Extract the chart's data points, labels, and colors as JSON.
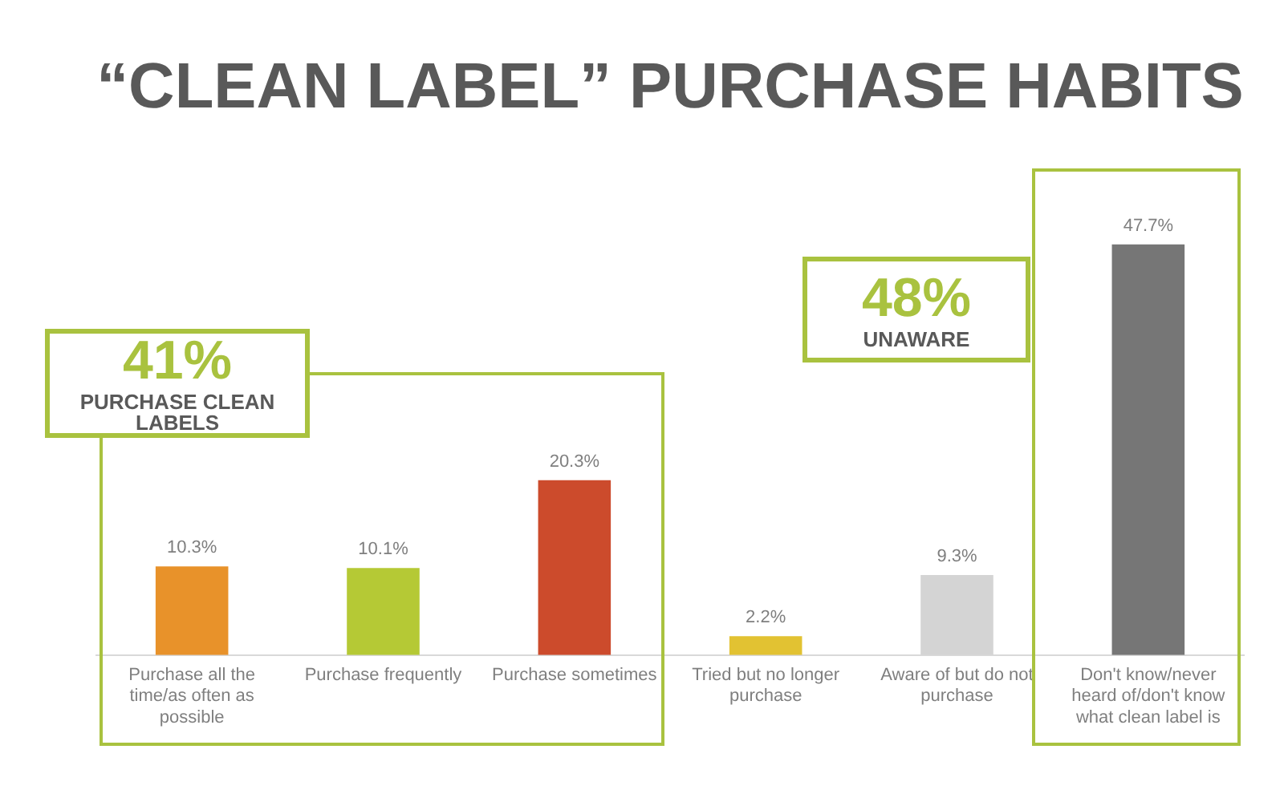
{
  "chart_data": {
    "type": "bar",
    "title": "“CLEAN LABEL” PURCHASE HABITS",
    "categories": [
      "Purchase all the time/as often as possible",
      "Purchase frequently",
      "Purchase sometimes",
      "Tried but no longer purchase",
      "Aware of but do not purchase",
      "Don't know/never heard of/don't know what clean label is"
    ],
    "values": [
      10.3,
      10.1,
      20.3,
      2.2,
      9.3,
      47.7
    ],
    "colors": [
      "#e8922a",
      "#b5c935",
      "#cc4b2c",
      "#e2c232",
      "#d4d4d4",
      "#767676"
    ],
    "value_labels": [
      "10.3%",
      "10.1%",
      "20.3%",
      "2.2%",
      "9.3%",
      "47.7%"
    ],
    "annotations": [
      "41%",
      "PURCHASE CLEAN LABELS",
      "48%",
      "UNAWARE"
    ],
    "grid": false,
    "legend": false
  }
}
